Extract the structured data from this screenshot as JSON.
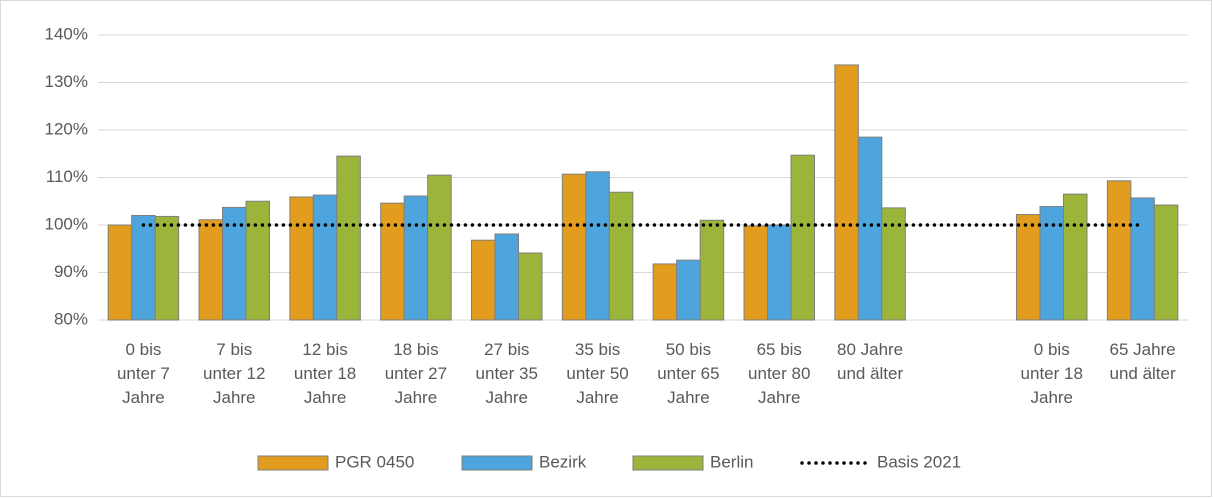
{
  "chart_data": {
    "type": "bar",
    "categories": [
      "0 bis\nunter 7\nJahre",
      "7 bis\nunter 12\nJahre",
      "12 bis\nunter 18\nJahre",
      "18 bis\nunter 27\nJahre",
      "27 bis\nunter 35\nJahre",
      "35 bis\nunter 50\nJahre",
      "50 bis\nunter 65\nJahre",
      "65 bis\nunter 80\nJahre",
      "80 Jahre\nund älter",
      null,
      "0 bis\nunter 18\nJahre",
      "65 Jahre\nund älter"
    ],
    "series": [
      {
        "name": "PGR 0450",
        "color": "#e39d1e",
        "values": [
          100,
          101.1,
          105.9,
          104.6,
          96.8,
          110.7,
          91.8,
          99.8,
          133.7,
          null,
          102.2,
          109.3
        ]
      },
      {
        "name": "Bezirk",
        "color": "#4ea5dd",
        "values": [
          102,
          103.7,
          106.3,
          106.1,
          98.1,
          111.2,
          92.6,
          100,
          118.5,
          null,
          103.9,
          105.7
        ]
      },
      {
        "name": "Berlin",
        "color": "#9bb53a",
        "values": [
          101.8,
          105,
          114.5,
          110.5,
          94.1,
          106.9,
          101,
          114.7,
          103.6,
          null,
          106.5,
          104.2
        ]
      },
      {
        "name": "Basis 2021",
        "color": "#000000",
        "type": "line",
        "style": "dotted",
        "values": [
          100,
          100,
          100,
          100,
          100,
          100,
          100,
          100,
          100,
          100,
          100,
          100
        ]
      }
    ],
    "ylim": [
      80,
      140
    ],
    "yticks": [
      {
        "value": 80,
        "label": "80%"
      },
      {
        "value": 90,
        "label": "90%"
      },
      {
        "value": 100,
        "label": "100%"
      },
      {
        "value": 110,
        "label": "110%"
      },
      {
        "value": 120,
        "label": "120%"
      },
      {
        "value": 130,
        "label": "130%"
      },
      {
        "value": 140,
        "label": "140%"
      }
    ],
    "grid": true,
    "legend": "bottom"
  }
}
